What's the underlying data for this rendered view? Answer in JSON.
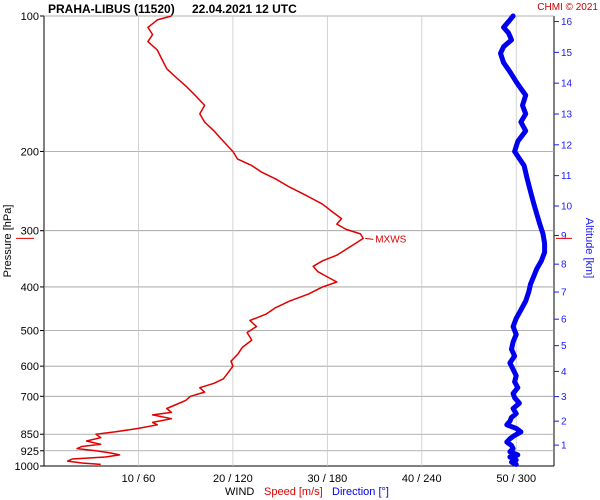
{
  "header": {
    "station": "PRAHA-LIBUS (11520)",
    "datetime": "22.04.2021 12 UTC",
    "copyright": "CHMI © 2021"
  },
  "colors": {
    "speed": "#e00000",
    "direction": "#0000ee",
    "grid": "#9a9a9a",
    "altitude_axis": "#1a1aff"
  },
  "chart_data": {
    "type": "line",
    "title": "PRAHA-LIBUS (11520)    22.04.2021 12 UTC",
    "ylabel": "Pressure [hPa]",
    "ylabel_right": "Altitude [km]",
    "xlabel_parts": [
      "WIND",
      "Speed [m/s]",
      "Direction [°]"
    ],
    "y_scale": "log",
    "ylim": [
      1000,
      100
    ],
    "y_ticks": [
      100,
      200,
      300,
      400,
      500,
      600,
      700,
      850,
      925,
      1000
    ],
    "x_tick_labels": [
      "10 / 60",
      "20 / 120",
      "30 / 180",
      "40 / 240",
      "50 / 300"
    ],
    "speed_xlim": [
      0,
      54
    ],
    "direction_xlim": [
      0,
      324
    ],
    "altitude_ticks_km": [
      1,
      2,
      3,
      4,
      5,
      6,
      7,
      8,
      9,
      10,
      11,
      12,
      13,
      14,
      15,
      16
    ],
    "annotation": {
      "text": "MXWS",
      "pressure_hPa": 312
    },
    "series": [
      {
        "name": "Speed [m/s]",
        "points": [
          [
            992,
            6.0
          ],
          [
            985,
            4.0
          ],
          [
            975,
            2.5
          ],
          [
            965,
            3.0
          ],
          [
            955,
            6.5
          ],
          [
            945,
            8.0
          ],
          [
            935,
            7.0
          ],
          [
            925,
            5.5
          ],
          [
            915,
            3.5
          ],
          [
            905,
            4.0
          ],
          [
            895,
            6.0
          ],
          [
            880,
            4.5
          ],
          [
            865,
            6.0
          ],
          [
            850,
            5.5
          ],
          [
            840,
            7.5
          ],
          [
            825,
            10.0
          ],
          [
            810,
            12.0
          ],
          [
            800,
            11.5
          ],
          [
            785,
            13.5
          ],
          [
            770,
            11.5
          ],
          [
            760,
            13.5
          ],
          [
            745,
            13.0
          ],
          [
            730,
            14.0
          ],
          [
            715,
            15.0
          ],
          [
            700,
            15.5
          ],
          [
            685,
            17.0
          ],
          [
            670,
            16.5
          ],
          [
            655,
            18.0
          ],
          [
            640,
            19.0
          ],
          [
            620,
            19.5
          ],
          [
            600,
            20.0
          ],
          [
            585,
            19.8
          ],
          [
            565,
            20.5
          ],
          [
            545,
            21.0
          ],
          [
            525,
            22.0
          ],
          [
            505,
            21.5
          ],
          [
            490,
            22.5
          ],
          [
            475,
            21.8
          ],
          [
            460,
            23.5
          ],
          [
            445,
            24.5
          ],
          [
            430,
            26.0
          ],
          [
            415,
            28.0
          ],
          [
            400,
            29.5
          ],
          [
            390,
            31.0
          ],
          [
            380,
            30.0
          ],
          [
            370,
            29.0
          ],
          [
            360,
            28.5
          ],
          [
            350,
            29.5
          ],
          [
            340,
            31.0
          ],
          [
            330,
            32.0
          ],
          [
            320,
            33.0
          ],
          [
            312,
            33.8
          ],
          [
            305,
            33.5
          ],
          [
            298,
            32.0
          ],
          [
            290,
            31.0
          ],
          [
            282,
            31.5
          ],
          [
            272,
            30.5
          ],
          [
            262,
            29.5
          ],
          [
            252,
            28.0
          ],
          [
            240,
            26.0
          ],
          [
            230,
            24.5
          ],
          [
            222,
            23.0
          ],
          [
            215,
            22.0
          ],
          [
            208,
            20.5
          ],
          [
            200,
            20.0
          ],
          [
            190,
            19.0
          ],
          [
            180,
            18.0
          ],
          [
            172,
            17.0
          ],
          [
            165,
            16.5
          ],
          [
            158,
            17.0
          ],
          [
            150,
            16.0
          ],
          [
            143,
            15.0
          ],
          [
            137,
            14.0
          ],
          [
            131,
            13.0
          ],
          [
            125,
            12.5
          ],
          [
            119,
            12.0
          ],
          [
            114,
            11.0
          ],
          [
            110,
            11.5
          ],
          [
            106,
            11.0
          ],
          [
            102,
            12.0
          ],
          [
            100,
            13.5
          ]
        ]
      },
      {
        "name": "Direction [°]",
        "points": [
          [
            992,
            300
          ],
          [
            980,
            297
          ],
          [
            970,
            300
          ],
          [
            955,
            296
          ],
          [
            945,
            301
          ],
          [
            930,
            296
          ],
          [
            915,
            298
          ],
          [
            900,
            297
          ],
          [
            885,
            294
          ],
          [
            870,
            296
          ],
          [
            855,
            299
          ],
          [
            840,
            303
          ],
          [
            825,
            300
          ],
          [
            810,
            294
          ],
          [
            795,
            296
          ],
          [
            780,
            297
          ],
          [
            765,
            300
          ],
          [
            745,
            298
          ],
          [
            725,
            302
          ],
          [
            705,
            299
          ],
          [
            690,
            298
          ],
          [
            670,
            301
          ],
          [
            650,
            299
          ],
          [
            630,
            300
          ],
          [
            610,
            298
          ],
          [
            590,
            296
          ],
          [
            570,
            299
          ],
          [
            550,
            297
          ],
          [
            530,
            298
          ],
          [
            510,
            300
          ],
          [
            490,
            298
          ],
          [
            470,
            300
          ],
          [
            450,
            303
          ],
          [
            430,
            306
          ],
          [
            410,
            308
          ],
          [
            395,
            309
          ],
          [
            380,
            311
          ],
          [
            365,
            313
          ],
          [
            350,
            316
          ],
          [
            335,
            318
          ],
          [
            320,
            318
          ],
          [
            305,
            317
          ],
          [
            290,
            315
          ],
          [
            275,
            313
          ],
          [
            260,
            311
          ],
          [
            245,
            309
          ],
          [
            230,
            307
          ],
          [
            215,
            305
          ],
          [
            200,
            299
          ],
          [
            190,
            301
          ],
          [
            180,
            306
          ],
          [
            172,
            303
          ],
          [
            165,
            306
          ],
          [
            158,
            304
          ],
          [
            150,
            306
          ],
          [
            145,
            303
          ],
          [
            140,
            300
          ],
          [
            133,
            296
          ],
          [
            127,
            292
          ],
          [
            121,
            290
          ],
          [
            117,
            292
          ],
          [
            113,
            297
          ],
          [
            109,
            295
          ],
          [
            106,
            292
          ],
          [
            103,
            295
          ],
          [
            100,
            298
          ]
        ]
      }
    ]
  }
}
